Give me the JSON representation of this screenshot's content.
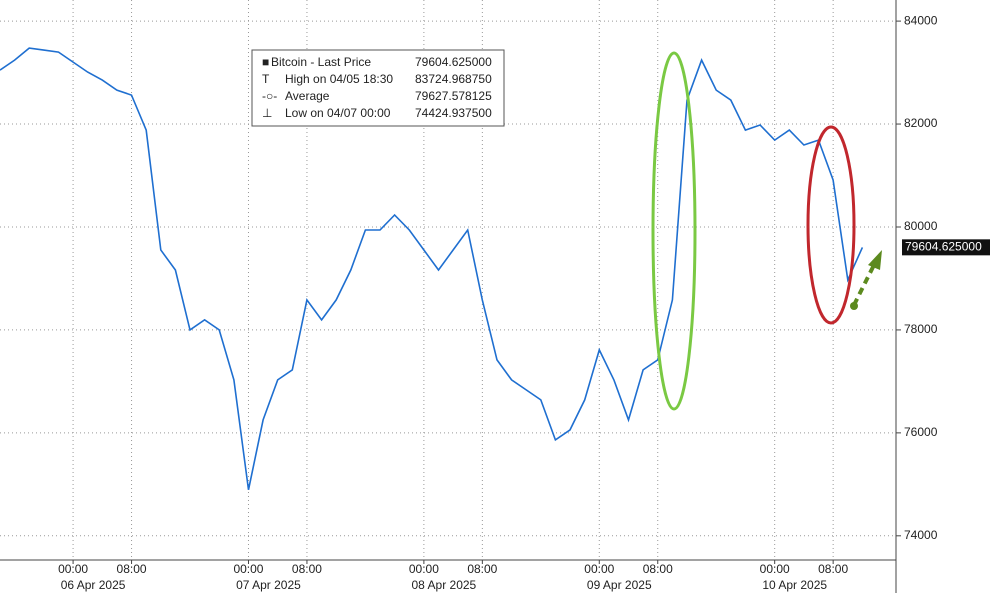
{
  "chart_data": {
    "type": "line",
    "x": [
      "2025-04-05 14:00",
      "2025-04-05 16:00",
      "2025-04-05 18:00",
      "2025-04-05 20:00",
      "2025-04-05 22:00",
      "2025-04-06 00:00",
      "2025-04-06 02:00",
      "2025-04-06 04:00",
      "2025-04-06 06:00",
      "2025-04-06 08:00",
      "2025-04-06 10:00",
      "2025-04-06 12:00",
      "2025-04-06 14:00",
      "2025-04-06 16:00",
      "2025-04-06 18:00",
      "2025-04-06 20:00",
      "2025-04-06 22:00",
      "2025-04-07 00:00",
      "2025-04-07 02:00",
      "2025-04-07 04:00",
      "2025-04-07 06:00",
      "2025-04-07 08:00",
      "2025-04-07 10:00",
      "2025-04-07 12:00",
      "2025-04-07 14:00",
      "2025-04-07 16:00",
      "2025-04-07 18:00",
      "2025-04-07 20:00",
      "2025-04-07 22:00",
      "2025-04-08 00:00",
      "2025-04-08 02:00",
      "2025-04-08 04:00",
      "2025-04-08 06:00",
      "2025-04-08 08:00",
      "2025-04-08 10:00",
      "2025-04-08 12:00",
      "2025-04-08 14:00",
      "2025-04-08 16:00",
      "2025-04-08 18:00",
      "2025-04-08 20:00",
      "2025-04-08 22:00",
      "2025-04-09 00:00",
      "2025-04-09 02:00",
      "2025-04-09 04:00",
      "2025-04-09 06:00",
      "2025-04-09 08:00",
      "2025-04-09 10:00",
      "2025-04-09 12:00",
      "2025-04-09 14:00",
      "2025-04-09 16:00",
      "2025-04-09 18:00",
      "2025-04-09 20:00",
      "2025-04-09 22:00",
      "2025-04-10 00:00",
      "2025-04-10 02:00",
      "2025-04-10 04:00",
      "2025-04-10 06:00",
      "2025-04-10 08:00",
      "2025-04-10 10:00",
      "2025-04-10 12:00"
    ],
    "series": [
      {
        "name": "Bitcoin - Last Price",
        "color": "#1f6fd0",
        "values": [
          83049,
          83243,
          83476,
          83437,
          83398,
          83204,
          83010,
          82854,
          82660,
          82563,
          81883,
          79553,
          79165,
          78000,
          78194,
          78000,
          77029,
          74893,
          76252,
          77029,
          77223,
          78583,
          78194,
          78583,
          79165,
          79942,
          79942,
          80233,
          79942,
          79553,
          79165,
          79553,
          79942,
          78583,
          77417,
          77029,
          76835,
          76641,
          75864,
          76058,
          76641,
          77612,
          77029,
          76252,
          77223,
          77417,
          78583,
          82466,
          83243,
          82660,
          82466,
          81883,
          81981,
          81689,
          81883,
          81592,
          81689,
          80913,
          78971,
          79604
        ]
      }
    ],
    "legend": [
      {
        "name": "Bitcoin - Last Price",
        "value": 79604.625,
        "value_label": "79604.625000"
      },
      {
        "name": "High on 04/05 18:30",
        "value": 83724.96875,
        "value_label": "83724.968750"
      },
      {
        "name": "Average",
        "value": 79627.578125,
        "value_label": "79627.578125"
      },
      {
        "name": "Low on 04/07 00:00",
        "value": 74424.9375,
        "value_label": "74424.937500"
      }
    ],
    "xlim": [
      "2025-04-05 14:00",
      "2025-04-10 16:36"
    ],
    "xticks": [
      {
        "value": "2025-04-06 00:00",
        "label": "00:00"
      },
      {
        "value": "2025-04-06 08:00",
        "label": "08:00"
      },
      {
        "value": "2025-04-07 00:00",
        "label": "00:00"
      },
      {
        "value": "2025-04-07 08:00",
        "label": "08:00"
      },
      {
        "value": "2025-04-08 00:00",
        "label": "00:00"
      },
      {
        "value": "2025-04-08 08:00",
        "label": "08:00"
      },
      {
        "value": "2025-04-09 00:00",
        "label": "00:00"
      },
      {
        "value": "2025-04-09 08:00",
        "label": "08:00"
      },
      {
        "value": "2025-04-10 00:00",
        "label": "00:00"
      },
      {
        "value": "2025-04-10 08:00",
        "label": "08:00"
      }
    ],
    "x_dates": [
      {
        "value": "2025-04-06 00:00",
        "label": "06 Apr 2025"
      },
      {
        "value": "2025-04-07 00:00",
        "label": "07 Apr 2025"
      },
      {
        "value": "2025-04-08 00:00",
        "label": "08 Apr 2025"
      },
      {
        "value": "2025-04-09 00:00",
        "label": "09 Apr 2025"
      },
      {
        "value": "2025-04-10 00:00",
        "label": "10 Apr 2025"
      }
    ],
    "ylim": [
      73530,
      84410
    ],
    "yticks": [
      74000,
      76000,
      78000,
      80000,
      82000,
      84000
    ],
    "grid": true
  }
}
